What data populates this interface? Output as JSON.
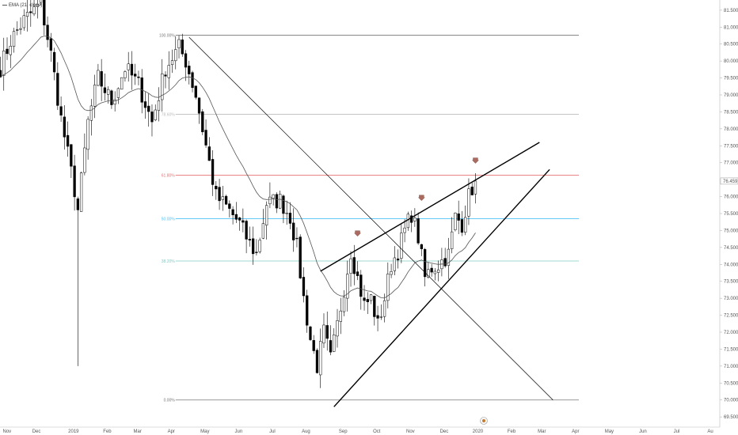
{
  "legend": {
    "indicator": "EMA (21, close)"
  },
  "chart_data": {
    "type": "candlestick",
    "title": "",
    "xlabel": "",
    "ylabel": "",
    "ylim": [
      69.2,
      81.8
    ],
    "y_ticks": [
      "81.500",
      "81.000",
      "80.500",
      "80.000",
      "79.500",
      "79.000",
      "78.500",
      "78.000",
      "77.500",
      "77.000",
      "76.459",
      "76.000",
      "75.500",
      "75.000",
      "74.500",
      "74.000",
      "73.500",
      "73.000",
      "72.500",
      "72.000",
      "71.500",
      "71.000",
      "70.500",
      "70.000",
      "69.500"
    ],
    "x_ticks": [
      "Nov",
      "Dec",
      "2019",
      "Feb",
      "Mar",
      "Apr",
      "May",
      "Jun",
      "Jul",
      "Aug",
      "Sep",
      "Oct",
      "Nov",
      "Dec",
      "2020",
      "Feb",
      "Mar",
      "Apr",
      "May",
      "Jun",
      "Jul",
      "Au"
    ],
    "x_tick_index": [
      0,
      10,
      21,
      31,
      40,
      50,
      60,
      70,
      80,
      90,
      101,
      111,
      121,
      131,
      141,
      151,
      160,
      170,
      180,
      190,
      200,
      210
    ],
    "current_price": 76.459,
    "ema_length": 21,
    "fib_levels": [
      {
        "label": "100.00%",
        "price": 80.76,
        "color": "#777777"
      },
      {
        "label": "78.60%",
        "price": 78.43,
        "color": "#bbbbbb"
      },
      {
        "label": "61.80%",
        "price": 76.63,
        "color": "#e57373"
      },
      {
        "label": "50.00%",
        "price": 75.35,
        "color": "#4fc3f7"
      },
      {
        "label": "38.20%",
        "price": 74.1,
        "color": "#80cbc4"
      },
      {
        "label": "0.00%",
        "price": 70.0,
        "color": "#777777"
      }
    ],
    "anchors": [
      {
        "i": 0,
        "p": 79.8
      },
      {
        "i": 3,
        "p": 80.6
      },
      {
        "i": 7,
        "p": 81.2
      },
      {
        "i": 12,
        "p": 81.7
      },
      {
        "i": 15,
        "p": 80.2
      },
      {
        "i": 18,
        "p": 78.3
      },
      {
        "i": 22,
        "p": 76.2
      },
      {
        "i": 23,
        "p": 75.6
      },
      {
        "i": 26,
        "p": 78.2
      },
      {
        "i": 29,
        "p": 79.5
      },
      {
        "i": 33,
        "p": 78.8
      },
      {
        "i": 37,
        "p": 79.8
      },
      {
        "i": 41,
        "p": 79.3
      },
      {
        "i": 45,
        "p": 78.2
      },
      {
        "i": 49,
        "p": 79.8
      },
      {
        "i": 53,
        "p": 80.4
      },
      {
        "i": 55,
        "p": 80.0
      },
      {
        "i": 58,
        "p": 79.0
      },
      {
        "i": 61,
        "p": 77.5
      },
      {
        "i": 64,
        "p": 76.0
      },
      {
        "i": 67,
        "p": 75.7
      },
      {
        "i": 71,
        "p": 75.2
      },
      {
        "i": 74,
        "p": 74.6
      },
      {
        "i": 76,
        "p": 74.3
      },
      {
        "i": 79,
        "p": 75.8
      },
      {
        "i": 83,
        "p": 75.9
      },
      {
        "i": 86,
        "p": 75.4
      },
      {
        "i": 88,
        "p": 74.5
      },
      {
        "i": 90,
        "p": 73.0
      },
      {
        "i": 92,
        "p": 71.8
      },
      {
        "i": 94,
        "p": 71.0
      },
      {
        "i": 96,
        "p": 72.0
      },
      {
        "i": 98,
        "p": 71.2
      },
      {
        "i": 100,
        "p": 72.2
      },
      {
        "i": 102,
        "p": 73.3
      },
      {
        "i": 104,
        "p": 74.4
      },
      {
        "i": 106,
        "p": 73.6
      },
      {
        "i": 108,
        "p": 72.8
      },
      {
        "i": 110,
        "p": 73.0
      },
      {
        "i": 112,
        "p": 72.2
      },
      {
        "i": 114,
        "p": 73.0
      },
      {
        "i": 116,
        "p": 74.0
      },
      {
        "i": 118,
        "p": 74.4
      },
      {
        "i": 120,
        "p": 75.0
      },
      {
        "i": 122,
        "p": 75.5
      },
      {
        "i": 124,
        "p": 74.8
      },
      {
        "i": 126,
        "p": 73.6
      },
      {
        "i": 128,
        "p": 73.9
      },
      {
        "i": 130,
        "p": 74.0
      },
      {
        "i": 133,
        "p": 74.3
      },
      {
        "i": 135,
        "p": 75.4
      },
      {
        "i": 137,
        "p": 75.2
      },
      {
        "i": 139,
        "p": 76.0
      },
      {
        "i": 141,
        "p": 76.5
      }
    ],
    "spikes": [
      {
        "i": 23,
        "low": 71.0
      }
    ],
    "trendlines": [
      {
        "name": "descending-trendline",
        "from": {
          "i": 56,
          "p": 80.7
        },
        "to": {
          "i": 164,
          "p": 70.0
        },
        "width": 0.7
      },
      {
        "name": "wedge-upper-line",
        "from": {
          "i": 95,
          "p": 73.8
        },
        "to": {
          "i": 160,
          "p": 77.6
        },
        "width": 1.4
      },
      {
        "name": "wedge-lower-line",
        "from": {
          "i": 99,
          "p": 69.8
        },
        "to": {
          "i": 163,
          "p": 76.8
        },
        "width": 1.4
      }
    ],
    "markers": [
      {
        "name": "arrow-marker-1",
        "i": 106,
        "p": 74.9
      },
      {
        "name": "arrow-marker-2",
        "i": 125,
        "p": 75.95
      },
      {
        "name": "arrow-marker-3",
        "i": 141,
        "p": 77.05
      }
    ],
    "colors": {
      "up": "#ffffff",
      "down": "#000000",
      "wick": "#000000",
      "ema": "#555555",
      "trend": "#000000"
    }
  }
}
